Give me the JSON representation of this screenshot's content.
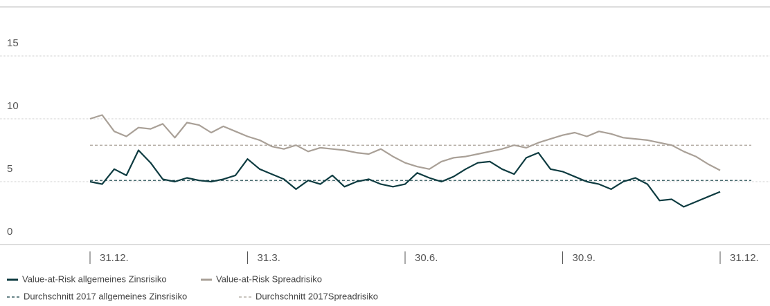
{
  "chart_data": {
    "type": "line",
    "categories": [
      "31.12.",
      null,
      null,
      null,
      null,
      null,
      null,
      null,
      null,
      null,
      null,
      null,
      null,
      "31.3.",
      null,
      null,
      null,
      null,
      null,
      null,
      null,
      null,
      null,
      null,
      null,
      null,
      "30.6.",
      null,
      null,
      null,
      null,
      null,
      null,
      null,
      null,
      null,
      null,
      null,
      null,
      "30.9.",
      null,
      null,
      null,
      null,
      null,
      null,
      null,
      null,
      null,
      null,
      null,
      null,
      "31.12."
    ],
    "series": [
      {
        "name": "Value-at-Risk allgemeines Zinsrisiko",
        "color": "#0d3b40",
        "values": [
          5.0,
          4.8,
          6.0,
          5.5,
          7.5,
          6.5,
          5.2,
          5.0,
          5.3,
          5.1,
          5.0,
          5.2,
          5.5,
          6.8,
          6.0,
          5.6,
          5.2,
          4.4,
          5.1,
          4.8,
          5.5,
          4.6,
          5.0,
          5.2,
          4.8,
          4.6,
          4.8,
          5.7,
          5.3,
          5.0,
          5.4,
          6.0,
          6.5,
          6.6,
          6.0,
          5.6,
          6.9,
          7.3,
          6.0,
          5.8,
          5.4,
          5.0,
          4.8,
          4.4,
          5.0,
          5.3,
          4.8,
          3.5,
          3.6,
          3.0,
          3.4,
          3.8,
          4.2
        ]
      },
      {
        "name": "Value-at-Risk Spreadrisiko",
        "color": "#a9a097",
        "values": [
          10.0,
          10.3,
          9.0,
          8.6,
          9.3,
          9.2,
          9.6,
          8.5,
          9.7,
          9.5,
          8.9,
          9.4,
          9.0,
          8.6,
          8.3,
          7.8,
          7.6,
          7.9,
          7.4,
          7.7,
          7.6,
          7.5,
          7.3,
          7.2,
          7.6,
          7.0,
          6.5,
          6.2,
          6.0,
          6.6,
          6.9,
          7.0,
          7.2,
          7.4,
          7.6,
          7.9,
          7.7,
          8.1,
          8.4,
          8.7,
          8.9,
          8.6,
          9.0,
          8.8,
          8.5,
          8.4,
          8.3,
          8.1,
          7.9,
          7.4,
          7.0,
          6.4,
          5.9
        ]
      }
    ],
    "averages": [
      {
        "name": "Durchschnitt 2017 allgemeines Zinsrisiko",
        "color": "#0d3b40",
        "value": 5.1
      },
      {
        "name": "Durchschnitt 2017Spreadrisiko",
        "color": "#a9a097",
        "value": 7.9
      }
    ],
    "ylim": [
      0,
      15
    ],
    "yticks": [
      0,
      5,
      10,
      15
    ],
    "grid": true
  }
}
